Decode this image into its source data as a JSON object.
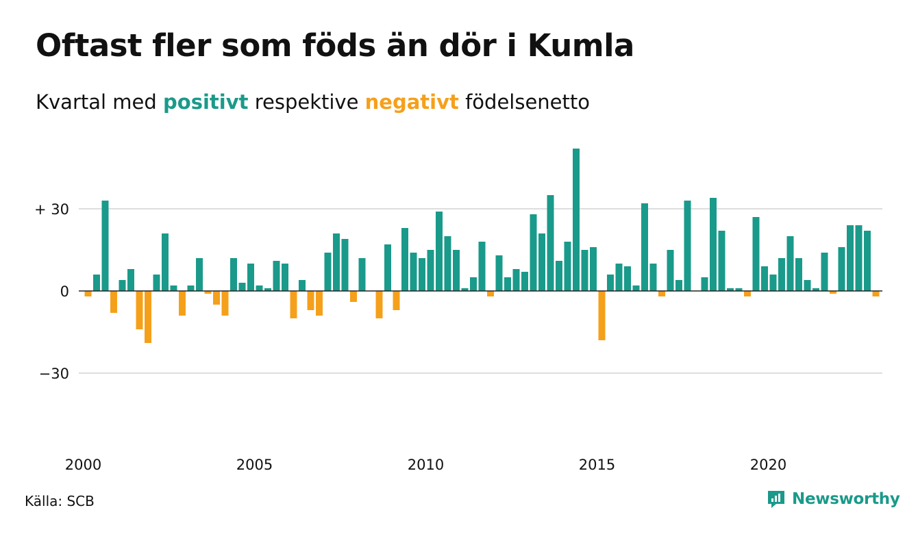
{
  "header": {
    "title": "Oftast fler som föds än dör i Kumla",
    "subtitle_pre": "Kvartal med ",
    "subtitle_positive": "positivt",
    "subtitle_mid": " respektive ",
    "subtitle_negative": "negativt",
    "subtitle_post": " födelsenetto"
  },
  "footer": {
    "source": "Källa: SCB",
    "brand": "Newsworthy"
  },
  "colors": {
    "positive": "#1a9a8a",
    "negative": "#f5a01b",
    "grid": "#dddddd",
    "zero_line": "#222222"
  },
  "chart_data": {
    "type": "bar",
    "start_year": 2000,
    "periods_per_year": 4,
    "values": [
      -2,
      6,
      33,
      -8,
      4,
      8,
      -14,
      -19,
      6,
      21,
      2,
      -9,
      2,
      12,
      -1,
      -5,
      -9,
      12,
      3,
      10,
      2,
      1,
      11,
      10,
      -10,
      4,
      -7,
      -9,
      14,
      21,
      19,
      -4,
      12,
      0,
      -10,
      17,
      -7,
      23,
      14,
      12,
      15,
      29,
      20,
      15,
      1,
      5,
      18,
      -2,
      13,
      5,
      8,
      7,
      28,
      21,
      35,
      11,
      18,
      52,
      15,
      16,
      -18,
      6,
      10,
      9,
      2,
      32,
      10,
      -2,
      15,
      4,
      33,
      0,
      5,
      34,
      22,
      1,
      1,
      -2,
      27,
      9,
      6,
      12,
      20,
      12,
      4,
      1,
      14,
      -1,
      16,
      24,
      24,
      22,
      -2
    ],
    "y_ticks": [
      {
        "value": 30,
        "label": "+ 30"
      },
      {
        "value": 0,
        "label": "0"
      },
      {
        "value": -30,
        "label": "−30"
      }
    ],
    "x_ticks": [
      {
        "year": 2000,
        "label": "2000"
      },
      {
        "year": 2005,
        "label": "2005"
      },
      {
        "year": 2010,
        "label": "2010"
      },
      {
        "year": 2015,
        "label": "2015"
      },
      {
        "year": 2020,
        "label": "2020"
      }
    ],
    "ylim": [
      -55,
      55
    ],
    "grid": true,
    "xlabel": "",
    "ylabel": ""
  }
}
